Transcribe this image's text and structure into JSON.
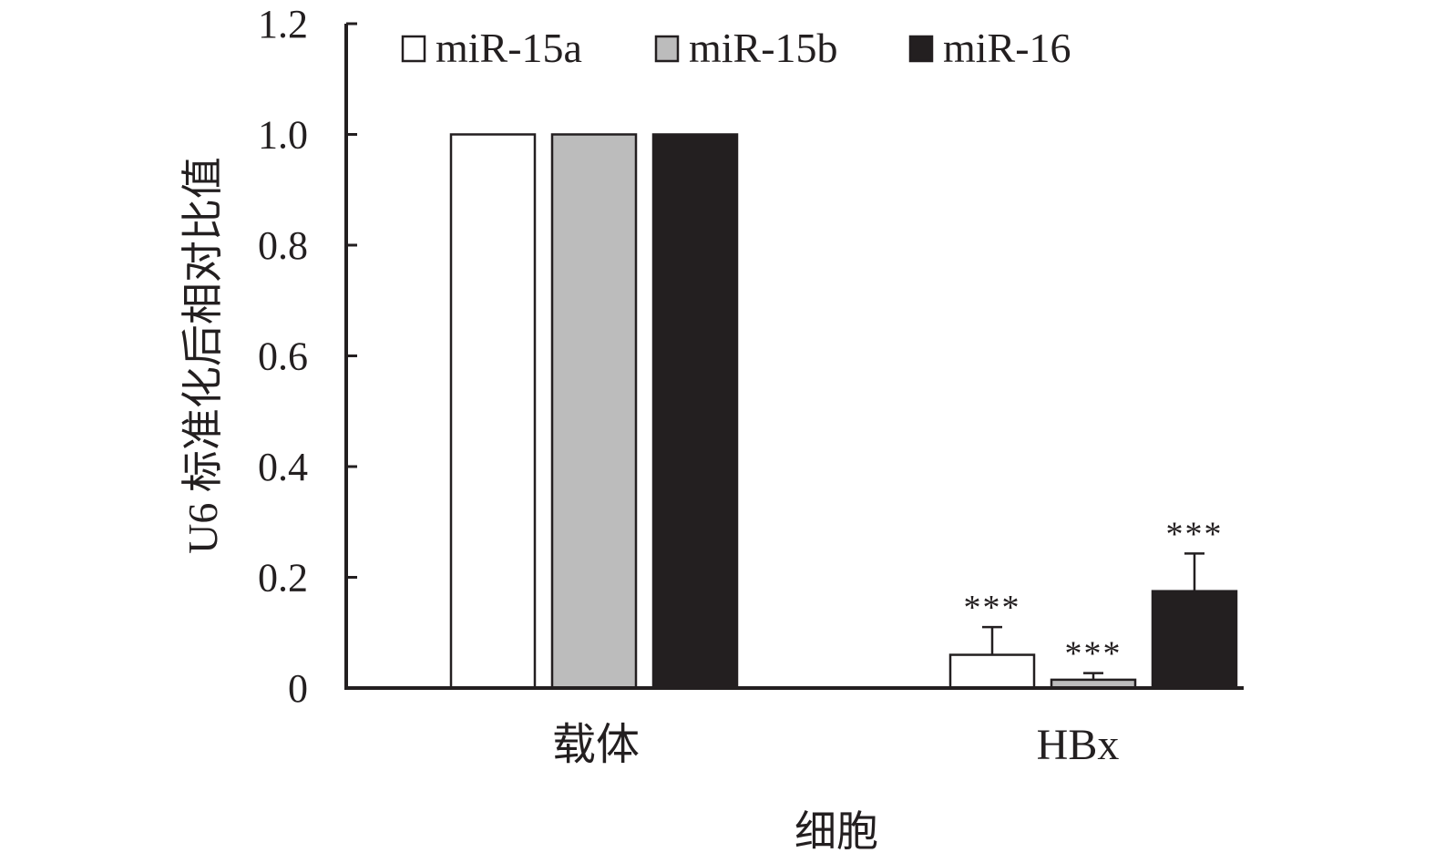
{
  "chart_data": {
    "type": "bar",
    "title": "",
    "xlabel": "细胞",
    "ylabel": "U6 标准化后相对比值",
    "categories": [
      "载体",
      "HBx"
    ],
    "ylim": [
      0,
      1.2
    ],
    "yticks": [
      "0",
      "0.2",
      "0.4",
      "0.6",
      "0.8",
      "1.0",
      "1.2"
    ],
    "legend_position": "top",
    "series": [
      {
        "name": "miR-15a",
        "color": "#ffffff",
        "values": [
          1.0,
          0.06
        ],
        "errors": [
          0,
          0.05
        ],
        "significance": [
          "",
          "***"
        ]
      },
      {
        "name": "miR-15b",
        "color": "#bcbcbc",
        "values": [
          1.0,
          0.015
        ],
        "errors": [
          0,
          0.012
        ],
        "significance": [
          "",
          "***"
        ]
      },
      {
        "name": "miR-16",
        "color": "#231f20",
        "values": [
          1.0,
          0.175
        ],
        "errors": [
          0,
          0.068
        ],
        "significance": [
          "",
          "***"
        ]
      }
    ]
  }
}
